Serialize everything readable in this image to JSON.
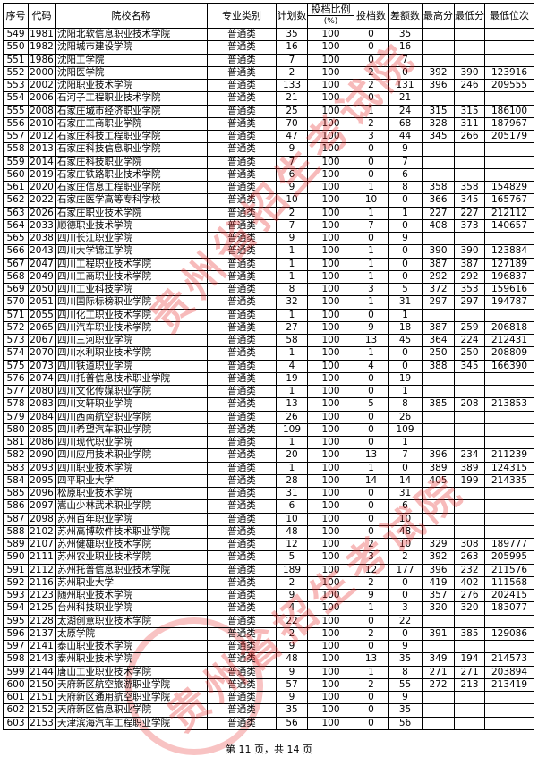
{
  "headers": {
    "seq": "序号",
    "code": "代码",
    "name": "院校名称",
    "category": "专业类别",
    "plan": "计划数",
    "ratio": "投档比例",
    "ratio_unit": "(%)",
    "admitted": "投档数",
    "gap": "差额数",
    "max": "最高分",
    "min": "最低分",
    "min_rank": "最低位次"
  },
  "rows": [
    [
      "549",
      "1981",
      "沈阳北软信息职业技术学院",
      "普通类",
      "35",
      "100",
      "0",
      "35",
      "",
      "",
      ""
    ],
    [
      "550",
      "1982",
      "沈阳城市建设学院",
      "普通类",
      "16",
      "100",
      "0",
      "16",
      "",
      "",
      ""
    ],
    [
      "551",
      "1986",
      "沈阳工学院",
      "普通类",
      "7",
      "100",
      "0",
      "7",
      "",
      "",
      ""
    ],
    [
      "552",
      "2000",
      "沈阳医学院",
      "普通类",
      "2",
      "100",
      "2",
      "0",
      "392",
      "390",
      "123916"
    ],
    [
      "553",
      "2002",
      "沈阳职业技术学院",
      "普通类",
      "133",
      "100",
      "2",
      "131",
      "396",
      "246",
      "209555"
    ],
    [
      "554",
      "2006",
      "石河子工程职业技术学院",
      "普通类",
      "21",
      "100",
      "0",
      "21",
      "",
      "",
      ""
    ],
    [
      "555",
      "2008",
      "石家庄城市经济职业学院",
      "普通类",
      "25",
      "100",
      "1",
      "24",
      "315",
      "315",
      "186100"
    ],
    [
      "556",
      "2010",
      "石家庄工商职业学院",
      "普通类",
      "70",
      "100",
      "2",
      "68",
      "328",
      "311",
      "187967"
    ],
    [
      "557",
      "2012",
      "石家庄科技工程职业学院",
      "普通类",
      "47",
      "100",
      "3",
      "44",
      "345",
      "266",
      "205179"
    ],
    [
      "558",
      "2013",
      "石家庄科技信息职业学院",
      "普通类",
      "9",
      "100",
      "0",
      "9",
      "",
      "",
      ""
    ],
    [
      "559",
      "2014",
      "石家庄科技职业学院",
      "普通类",
      "7",
      "100",
      "0",
      "7",
      "",
      "",
      ""
    ],
    [
      "560",
      "2019",
      "石家庄铁路职业技术学院",
      "普通类",
      "6",
      "100",
      "0",
      "6",
      "",
      "",
      ""
    ],
    [
      "561",
      "2020",
      "石家庄信息工程职业学院",
      "普通类",
      "9",
      "100",
      "1",
      "8",
      "358",
      "358",
      "154829"
    ],
    [
      "562",
      "2022",
      "石家庄医学高等专科学校",
      "普通类",
      "10",
      "100",
      "10",
      "0",
      "366",
      "345",
      "165767"
    ],
    [
      "563",
      "2026",
      "石家庄职业技术学院",
      "普通类",
      "2",
      "100",
      "1",
      "1",
      "227",
      "227",
      "212112"
    ],
    [
      "564",
      "2033",
      "顺德职业技术学院",
      "普通类",
      "7",
      "100",
      "7",
      "0",
      "408",
      "373",
      "140657"
    ],
    [
      "565",
      "2038",
      "四川长江职业学院",
      "普通类",
      "9",
      "100",
      "0",
      "9",
      "",
      "",
      ""
    ],
    [
      "566",
      "2043",
      "四川大学锦江学院",
      "普通类",
      "1",
      "100",
      "1",
      "0",
      "390",
      "390",
      "123884"
    ],
    [
      "567",
      "2047",
      "四川工程职业技术学院",
      "普通类",
      "1",
      "100",
      "1",
      "0",
      "387",
      "387",
      "127189"
    ],
    [
      "568",
      "2049",
      "四川工商职业技术学院",
      "普通类",
      "1",
      "100",
      "1",
      "0",
      "292",
      "292",
      "196837"
    ],
    [
      "569",
      "2050",
      "四川工业科技学院",
      "普通类",
      "8",
      "100",
      "3",
      "5",
      "372",
      "353",
      "159616"
    ],
    [
      "570",
      "2051",
      "四川国际标榜职业学院",
      "普通类",
      "32",
      "100",
      "1",
      "31",
      "297",
      "297",
      "194787"
    ],
    [
      "571",
      "2055",
      "四川化工职业技术学院",
      "普通类",
      "1",
      "100",
      "0",
      "1",
      "",
      "",
      ""
    ],
    [
      "572",
      "2065",
      "四川汽车职业技术学院",
      "普通类",
      "27",
      "100",
      "9",
      "18",
      "387",
      "259",
      "206818"
    ],
    [
      "573",
      "2067",
      "四川三河职业学院",
      "普通类",
      "58",
      "100",
      "13",
      "45",
      "364",
      "224",
      "212431"
    ],
    [
      "574",
      "2070",
      "四川水利职业技术学院",
      "普通类",
      "1",
      "100",
      "1",
      "0",
      "250",
      "250",
      "208809"
    ],
    [
      "575",
      "2073",
      "四川铁道职业学院",
      "普通类",
      "4",
      "100",
      "4",
      "0",
      "388",
      "345",
      "166390"
    ],
    [
      "576",
      "2074",
      "四川托普信息技术职业学院",
      "普通类",
      "19",
      "100",
      "0",
      "19",
      "",
      "",
      ""
    ],
    [
      "577",
      "2080",
      "四川文化传媒职业学院",
      "普通类",
      "1",
      "100",
      "0",
      "1",
      "",
      "",
      ""
    ],
    [
      "578",
      "2083",
      "四川文轩职业学院",
      "普通类",
      "13",
      "100",
      "5",
      "8",
      "385",
      "208",
      "213853"
    ],
    [
      "579",
      "2084",
      "四川西南航空职业学院",
      "普通类",
      "26",
      "100",
      "0",
      "26",
      "",
      "",
      ""
    ],
    [
      "580",
      "2085",
      "四川希望汽车职业学院",
      "普通类",
      "109",
      "100",
      "0",
      "109",
      "",
      "",
      ""
    ],
    [
      "581",
      "2086",
      "四川现代职业学院",
      "普通类",
      "1",
      "100",
      "0",
      "1",
      "",
      "",
      ""
    ],
    [
      "582",
      "2090",
      "四川应用技术职业学院",
      "普通类",
      "20",
      "100",
      "13",
      "7",
      "396",
      "234",
      "211239"
    ],
    [
      "583",
      "2093",
      "四川职业技术学院",
      "普通类",
      "1",
      "100",
      "1",
      "0",
      "389",
      "389",
      "124315"
    ],
    [
      "584",
      "2095",
      "四平职业大学",
      "普通类",
      "28",
      "100",
      "14",
      "14",
      "405",
      "199",
      "214335"
    ],
    [
      "585",
      "2096",
      "松原职业技术学院",
      "普通类",
      "31",
      "100",
      "0",
      "31",
      "",
      "",
      ""
    ],
    [
      "586",
      "2097",
      "嵩山少林武术职业学院",
      "普通类",
      "6",
      "100",
      "0",
      "6",
      "",
      "",
      ""
    ],
    [
      "587",
      "2098",
      "苏州百年职业学院",
      "普通类",
      "10",
      "100",
      "0",
      "10",
      "",
      "",
      ""
    ],
    [
      "588",
      "2102",
      "苏州高博软件技术职业学院",
      "普通类",
      "48",
      "100",
      "0",
      "48",
      "",
      "",
      ""
    ],
    [
      "589",
      "2107",
      "苏州健雄职业技术学院",
      "普通类",
      "12",
      "100",
      "2",
      "10",
      "329",
      "308",
      "189777"
    ],
    [
      "590",
      "2111",
      "苏州农业职业技术学院",
      "普通类",
      "5",
      "100",
      "3",
      "2",
      "392",
      "263",
      "205995"
    ],
    [
      "591",
      "2112",
      "苏州托普信息职业技术学院",
      "普通类",
      "189",
      "100",
      "12",
      "177",
      "396",
      "232",
      "211576"
    ],
    [
      "592",
      "2116",
      "苏州职业大学",
      "普通类",
      "2",
      "100",
      "2",
      "0",
      "419",
      "402",
      "111568"
    ],
    [
      "593",
      "2123",
      "随州职业技术学院",
      "普通类",
      "9",
      "100",
      "9",
      "0",
      "357",
      "276",
      "202415"
    ],
    [
      "594",
      "2125",
      "台州科技职业学院",
      "普通类",
      "4",
      "100",
      "1",
      "3",
      "320",
      "320",
      "183077"
    ],
    [
      "595",
      "2128",
      "太湖创意职业技术学院",
      "普通类",
      "22",
      "100",
      "0",
      "22",
      "",
      "",
      ""
    ],
    [
      "596",
      "2137",
      "太原学院",
      "普通类",
      "2",
      "100",
      "2",
      "0",
      "391",
      "385",
      "129086"
    ],
    [
      "597",
      "2141",
      "泰山职业技术学院",
      "普通类",
      "9",
      "100",
      "0",
      "9",
      "",
      "",
      ""
    ],
    [
      "598",
      "2143",
      "泰州职业技术学院",
      "普通类",
      "48",
      "100",
      "13",
      "35",
      "349",
      "194",
      "214573"
    ],
    [
      "599",
      "2144",
      "唐山工业职业技术学院",
      "普通类",
      "9",
      "100",
      "1",
      "8",
      "271",
      "271",
      "203894"
    ],
    [
      "600",
      "2150",
      "天府新区航空旅游职业学院",
      "普通类",
      "57",
      "100",
      "2",
      "55",
      "272",
      "213",
      "213419"
    ],
    [
      "601",
      "2151",
      "天府新区通用航空职业学院",
      "普通类",
      "9",
      "100",
      "0",
      "9",
      "",
      "",
      ""
    ],
    [
      "602",
      "2152",
      "天府新区信息职业学院",
      "普通类",
      "35",
      "100",
      "0",
      "35",
      "",
      "",
      ""
    ],
    [
      "603",
      "2153",
      "天津滨海汽车工程职业学院",
      "普通类",
      "56",
      "100",
      "0",
      "56",
      "",
      "",
      ""
    ]
  ],
  "footer": "第 11 页，共 14 页",
  "watermark": "贵州省招生考试院",
  "watermark_color": "#e62828"
}
